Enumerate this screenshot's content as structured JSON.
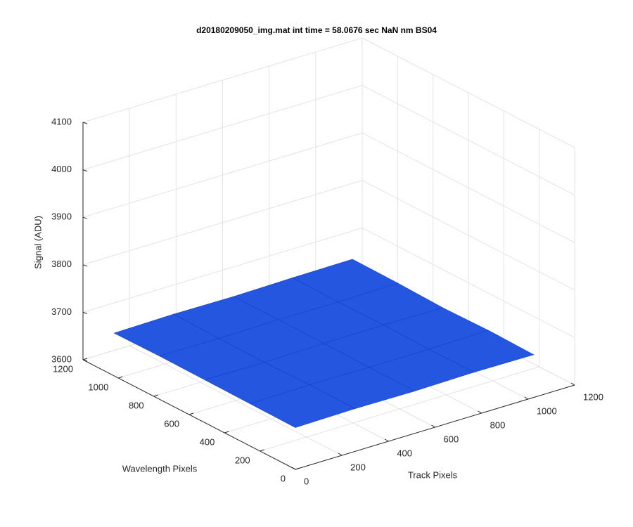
{
  "chart_data": {
    "type": "surface",
    "title": "d20180209050_img.mat int time = 58.0676 sec  NaN nm BS04",
    "xlabel": "Track Pixels",
    "ylabel": "Wavelength Pixels",
    "zlabel": "Signal (ADU)",
    "x": [
      0,
      256,
      512,
      768,
      1024
    ],
    "y": [
      0,
      256,
      512,
      768,
      1024
    ],
    "z": [
      [
        3688,
        3690,
        3689,
        3691,
        3690
      ],
      [
        3689,
        3691,
        3690,
        3690,
        3692
      ],
      [
        3690,
        3689,
        3691,
        3692,
        3690
      ],
      [
        3691,
        3690,
        3692,
        3691,
        3693
      ],
      [
        3690,
        3692,
        3691,
        3693,
        3694
      ]
    ],
    "xlim": [
      0,
      1200
    ],
    "ylim": [
      0,
      1200
    ],
    "zlim": [
      3600,
      4100
    ],
    "xticks": [
      0,
      200,
      400,
      600,
      800,
      1000,
      1200
    ],
    "yticks": [
      0,
      200,
      400,
      600,
      800,
      1000,
      1200
    ],
    "zticks": [
      3600,
      3700,
      3800,
      3900,
      4000,
      4100
    ],
    "grid": true,
    "color": "#2456e0"
  }
}
